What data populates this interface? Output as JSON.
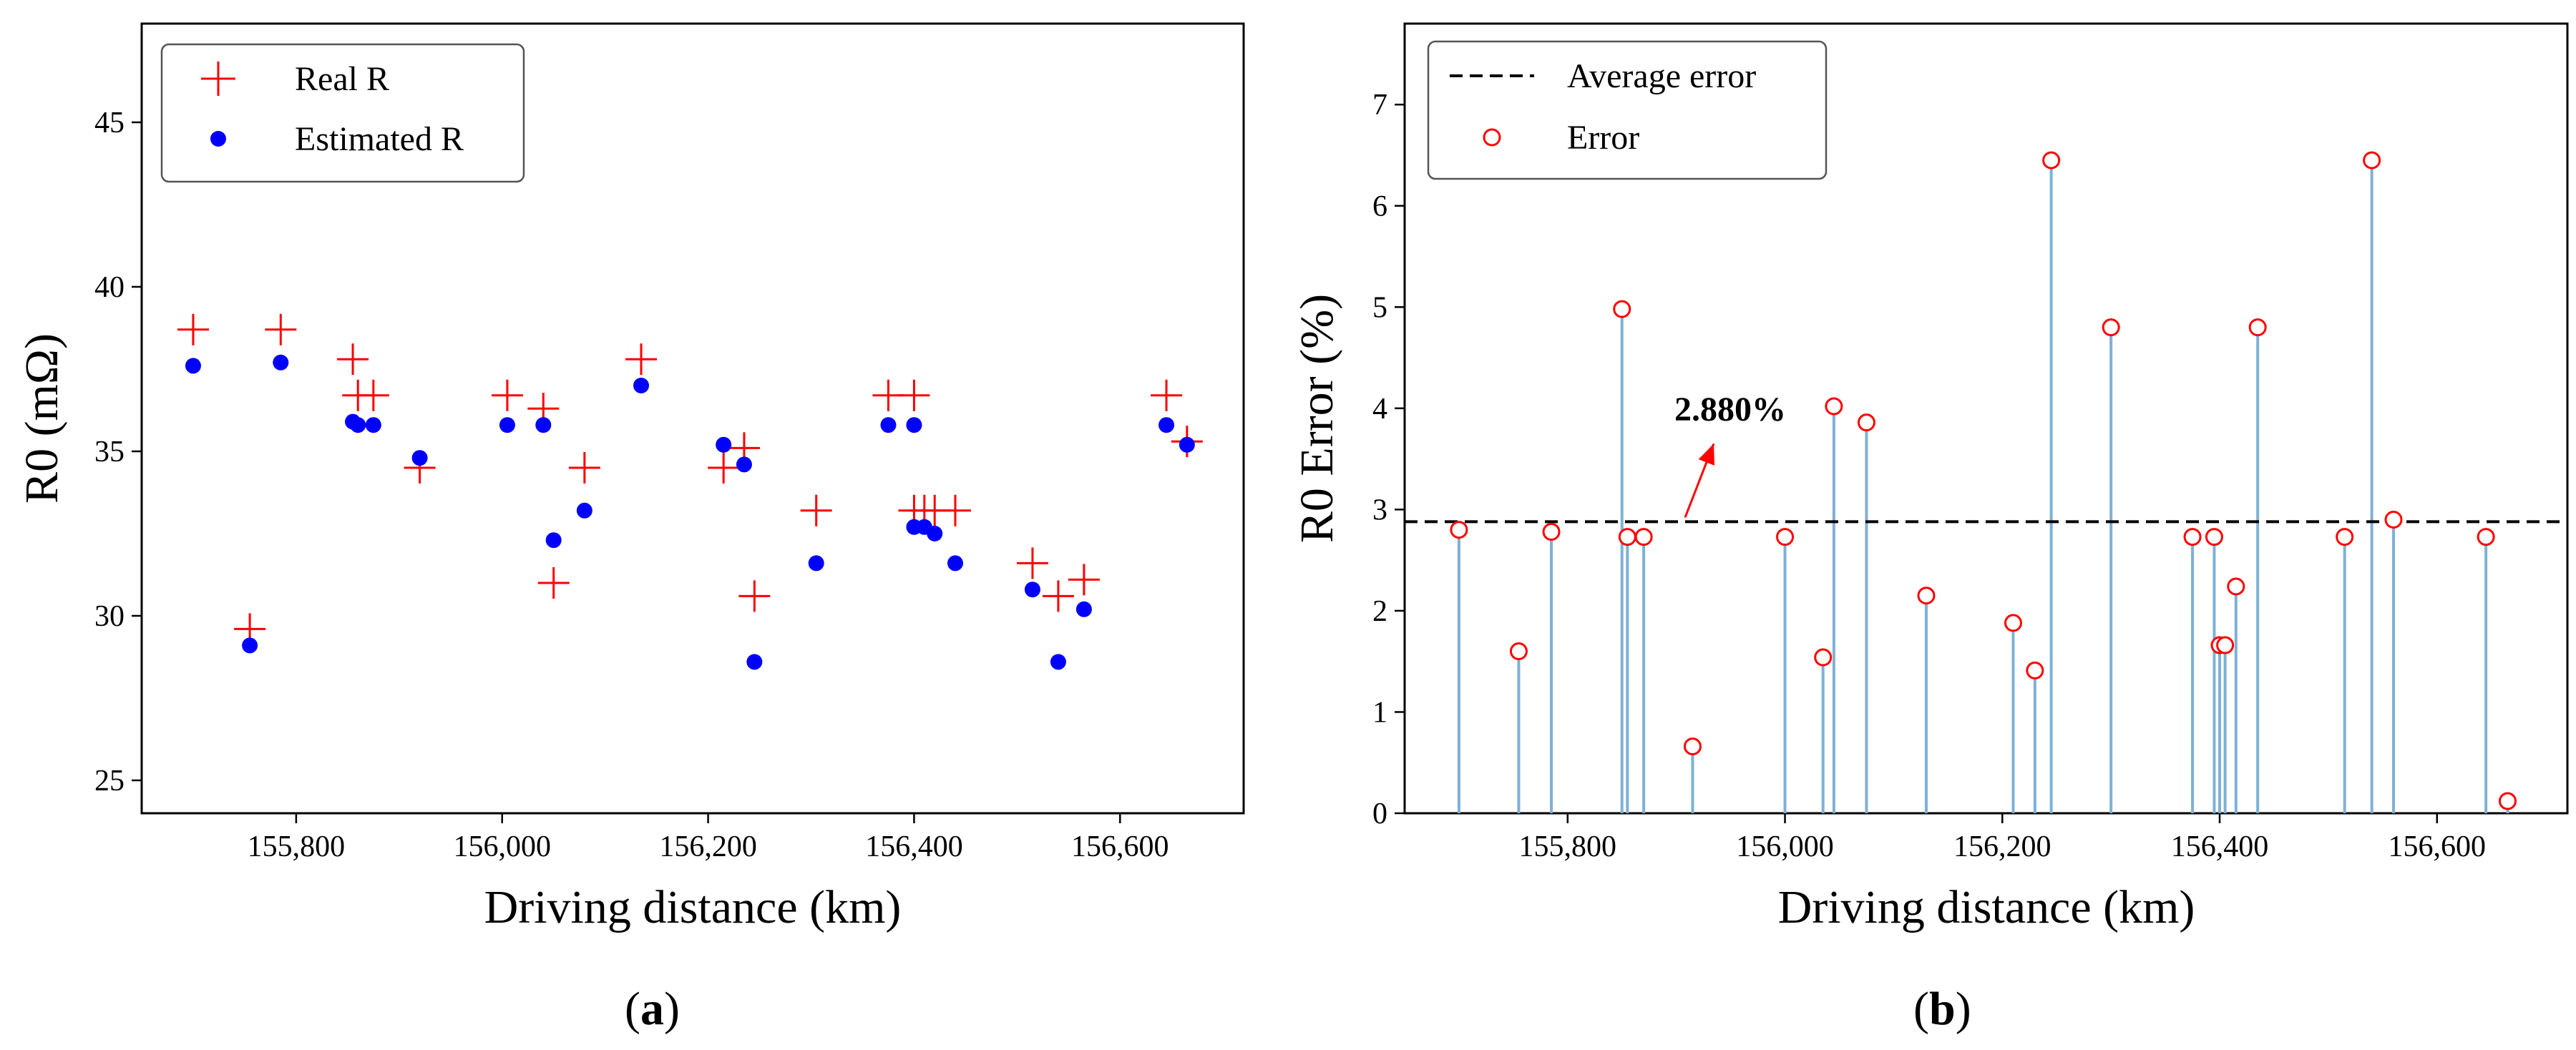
{
  "chart_data": [
    {
      "type": "scatter",
      "panel_label": "a",
      "xlabel": "Driving distance (km)",
      "ylabel": "R0 (mΩ)",
      "xlim": [
        155650,
        156720
      ],
      "ylim": [
        24,
        48
      ],
      "xticks": [
        155800,
        156000,
        156200,
        156400,
        156600
      ],
      "xtick_labels": [
        "155,800",
        "156,000",
        "156,200",
        "156,400",
        "156,600"
      ],
      "yticks": [
        25,
        30,
        35,
        40,
        45
      ],
      "ytick_labels": [
        "25",
        "30",
        "35",
        "40",
        "45"
      ],
      "legend_position": "upper-left",
      "series": [
        {
          "name": "Real R",
          "marker": "plus",
          "color": "#ff0000",
          "x": [
            155700,
            155755,
            155785,
            155855,
            155860,
            155875,
            155920,
            156005,
            156040,
            156050,
            156080,
            156135,
            156215,
            156235,
            156245,
            156305,
            156375,
            156400,
            156400,
            156410,
            156420,
            156440,
            156515,
            156540,
            156565,
            156645,
            156665
          ],
          "y": [
            38.7,
            29.6,
            38.7,
            37.8,
            36.7,
            36.7,
            34.5,
            36.7,
            36.3,
            31.0,
            34.5,
            37.8,
            34.5,
            35.1,
            30.6,
            33.2,
            36.7,
            36.7,
            33.2,
            33.2,
            33.2,
            33.2,
            31.6,
            30.6,
            31.1,
            36.7,
            35.3
          ]
        },
        {
          "name": "Estimated R",
          "marker": "dot",
          "color": "#0000ff",
          "x": [
            155700,
            155755,
            155785,
            155855,
            155860,
            155875,
            155920,
            156005,
            156040,
            156050,
            156080,
            156135,
            156215,
            156235,
            156245,
            156305,
            156375,
            156400,
            156400,
            156410,
            156420,
            156440,
            156515,
            156540,
            156565,
            156645,
            156665
          ],
          "y": [
            37.6,
            29.1,
            37.7,
            35.9,
            35.8,
            35.8,
            34.8,
            35.8,
            35.8,
            32.3,
            33.2,
            37.0,
            35.2,
            34.6,
            28.6,
            31.6,
            35.8,
            35.8,
            32.7,
            32.7,
            32.5,
            31.6,
            30.8,
            28.6,
            30.2,
            35.8,
            35.2
          ]
        }
      ]
    },
    {
      "type": "stem",
      "panel_label": "b",
      "xlabel": "Driving distance (km)",
      "ylabel": "R0 Error (%)",
      "xlim": [
        155650,
        156720
      ],
      "ylim": [
        0,
        7.8
      ],
      "xticks": [
        155800,
        156000,
        156200,
        156400,
        156600
      ],
      "xtick_labels": [
        "155,800",
        "156,000",
        "156,200",
        "156,400",
        "156,600"
      ],
      "yticks": [
        0,
        1,
        2,
        3,
        4,
        5,
        6,
        7
      ],
      "ytick_labels": [
        "0",
        "1",
        "2",
        "3",
        "4",
        "5",
        "6",
        "7"
      ],
      "legend_position": "upper-left",
      "average_error": 2.88,
      "average_label": "Average error",
      "error_label": "Error",
      "annotation": "2.880%",
      "colors": {
        "stem": "#7fb0d6",
        "marker": "#ff0000",
        "average": "#000000",
        "arrow": "#ff0000"
      },
      "x": [
        155700,
        155755,
        155785,
        155850,
        155855,
        155870,
        155915,
        156000,
        156035,
        156045,
        156075,
        156130,
        156210,
        156230,
        156245,
        156300,
        156375,
        156395,
        156400,
        156405,
        156415,
        156435,
        156515,
        156540,
        156560,
        156645,
        156665
      ],
      "y": [
        2.8,
        1.6,
        2.78,
        4.98,
        2.73,
        2.73,
        0.66,
        2.73,
        1.54,
        4.02,
        3.86,
        2.15,
        1.88,
        1.41,
        6.45,
        4.8,
        2.73,
        2.73,
        1.66,
        1.66,
        2.24,
        4.8,
        2.73,
        6.45,
        2.9,
        2.73,
        0.12
      ]
    }
  ]
}
